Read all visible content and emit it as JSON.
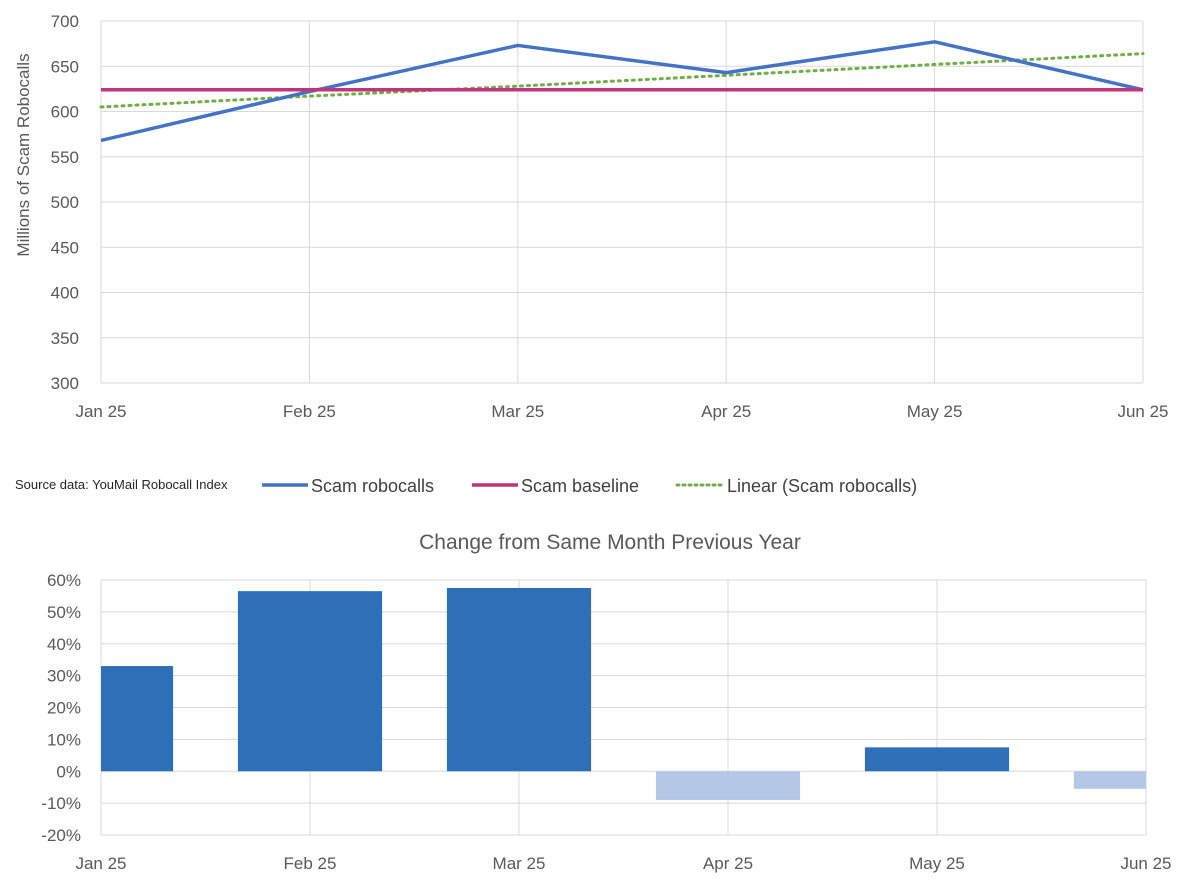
{
  "source_note": "Source data: YouMail Robocall Index",
  "legend": {
    "scam_robocalls": "Scam robocalls",
    "scam_baseline": "Scam baseline",
    "linear": "Linear (Scam robocalls)"
  },
  "colors": {
    "scam_robocalls": "#4472C4",
    "scam_baseline": "#C0357A",
    "linear": "#70AD47",
    "bar_positive": "#2E6FB7",
    "bar_negative": "#B4C7E7",
    "grid": "#D9D9D9"
  },
  "chart_data": [
    {
      "type": "line",
      "title": "",
      "xlabel": "",
      "ylabel": "Millions of Scam Robocalls",
      "categories": [
        "Jan 25",
        "Feb 25",
        "Mar 25",
        "Apr 25",
        "May 25",
        "Jun 25"
      ],
      "y_ticks": [
        "300",
        "350",
        "400",
        "450",
        "500",
        "550",
        "600",
        "650",
        "700"
      ],
      "ylim": [
        300,
        700
      ],
      "grid": true,
      "legend_position": "bottom",
      "series": [
        {
          "name": "Scam robocalls",
          "values": [
            568,
            622,
            673,
            643,
            677,
            624
          ],
          "style": "solid"
        },
        {
          "name": "Scam baseline",
          "values": [
            624,
            624,
            624,
            624,
            624,
            624
          ],
          "style": "solid"
        },
        {
          "name": "Linear (Scam robocalls)",
          "values": [
            605,
            617,
            628,
            640,
            652,
            664
          ],
          "style": "dotted"
        }
      ]
    },
    {
      "type": "bar",
      "title": "Change from Same Month Previous Year",
      "xlabel": "",
      "ylabel": "",
      "categories": [
        "Jan 25",
        "Feb 25",
        "Mar 25",
        "Apr 25",
        "May 25",
        "Jun 25"
      ],
      "y_ticks": [
        "-20%",
        "-10%",
        "0%",
        "10%",
        "20%",
        "30%",
        "40%",
        "50%",
        "60%"
      ],
      "ylim": [
        -20,
        60
      ],
      "grid": true,
      "values": [
        33,
        56.5,
        57.5,
        -9,
        7.5,
        -5.5
      ]
    }
  ]
}
